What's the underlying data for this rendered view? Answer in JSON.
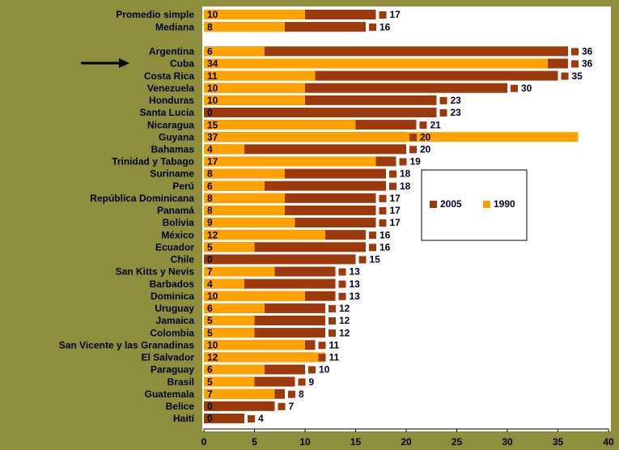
{
  "chart_data": {
    "type": "bar",
    "orientation": "horizontal",
    "categories": [
      "Promedio simple",
      "Mediana",
      null,
      "Argentina",
      "Cuba",
      "Costa Rica",
      "Venezuela",
      "Honduras",
      "Santa Lucía",
      "Nicaragua",
      "Guyana",
      "Bahamas",
      "Trinidad y Tabago",
      "Suriname",
      "Perú",
      "República Dominicana",
      "Panamá",
      "Bolivia",
      "México",
      "Ecuador",
      "Chile",
      "San Kitts y Nevis",
      "Barbados",
      "Dominica",
      "Uruguay",
      "Jamaica",
      "Colombia",
      "San Vicente y las Granadinas",
      "El Salvador",
      "Paraguay",
      "Brasil",
      "Guatemala",
      "Belice",
      "Haití"
    ],
    "series": [
      {
        "name": "2005",
        "color": "#9c3a0c",
        "values": [
          17,
          16,
          null,
          36,
          36,
          35,
          30,
          23,
          23,
          21,
          20,
          20,
          19,
          18,
          18,
          17,
          17,
          17,
          16,
          16,
          15,
          13,
          13,
          13,
          12,
          12,
          12,
          11,
          11,
          10,
          9,
          8,
          7,
          4
        ]
      },
      {
        "name": "1990",
        "color": "#ffa200",
        "values": [
          10,
          8,
          null,
          6,
          34,
          11,
          10,
          10,
          0,
          15,
          37,
          4,
          17,
          8,
          6,
          8,
          8,
          9,
          12,
          5,
          0,
          7,
          4,
          10,
          6,
          5,
          5,
          10,
          12,
          6,
          5,
          7,
          0,
          0
        ]
      }
    ],
    "xlim": [
      0,
      40
    ],
    "xticks": [
      0,
      5,
      10,
      15,
      20,
      25,
      30,
      35,
      40
    ],
    "legend": "center"
  }
}
